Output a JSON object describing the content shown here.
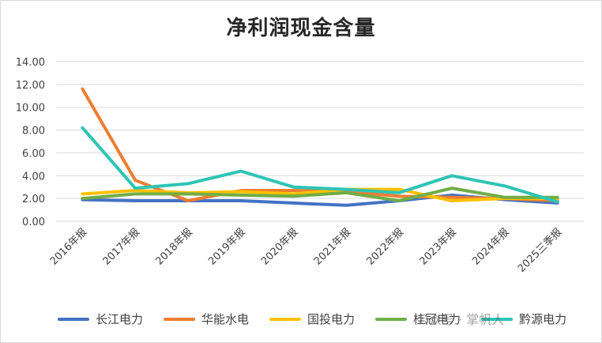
{
  "chart_data": {
    "type": "line",
    "title": "净利润现金含量",
    "categories": [
      "2016年报",
      "2017年报",
      "2018年报",
      "2019年报",
      "2020年报",
      "2021年报",
      "2022年报",
      "2023年报",
      "2024年报",
      "2025三季报"
    ],
    "yticks": [
      "0.00",
      "2.00",
      "4.00",
      "6.00",
      "8.00",
      "10.00",
      "12.00",
      "14.00"
    ],
    "ylim": [
      0,
      14
    ],
    "grid": true,
    "legend_position": "bottom",
    "series": [
      {
        "name": "长江电力",
        "color": "#4472C4",
        "values": [
          1.9,
          1.8,
          1.8,
          1.8,
          1.6,
          1.4,
          1.8,
          2.3,
          1.9,
          1.6
        ]
      },
      {
        "name": "华能水电",
        "color": "#ED7D31",
        "values": [
          11.6,
          3.6,
          1.8,
          2.7,
          2.7,
          2.6,
          2.2,
          2.1,
          2.0,
          1.8
        ]
      },
      {
        "name": "国投电力",
        "color": "#FFC000",
        "values": [
          2.4,
          2.7,
          2.5,
          2.6,
          2.4,
          2.8,
          2.8,
          1.8,
          2.0,
          2.0
        ]
      },
      {
        "name": "桂冠电力",
        "color": "#70AD47",
        "values": [
          2.0,
          2.4,
          2.4,
          2.3,
          2.2,
          2.5,
          1.8,
          2.9,
          2.1,
          2.1
        ]
      },
      {
        "name": "黔源电力",
        "color": "#2EC4B6",
        "values": [
          8.2,
          2.9,
          3.3,
          4.4,
          3.0,
          2.8,
          2.5,
          4.0,
          3.1,
          1.7
        ]
      }
    ]
  },
  "watermark": "公众号 · 掌帆人"
}
